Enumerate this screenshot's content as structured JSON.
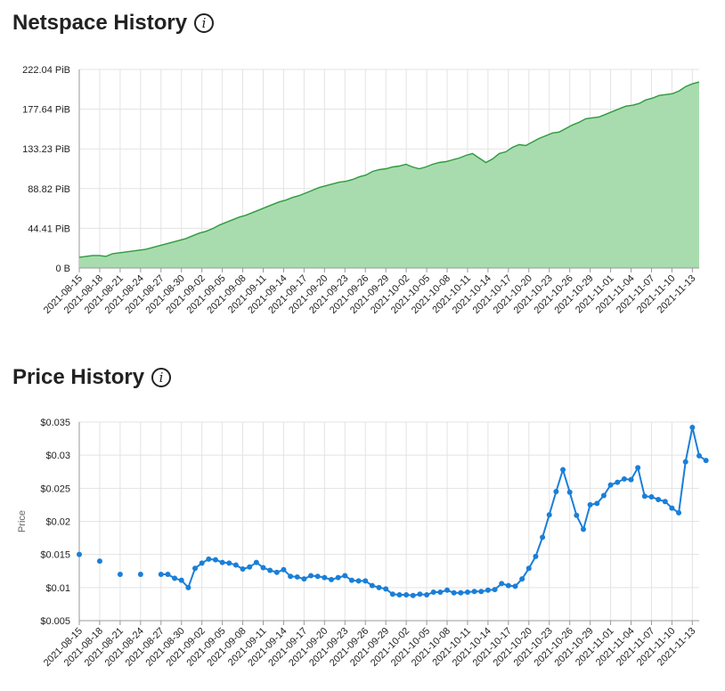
{
  "netspace": {
    "title": "Netspace History",
    "info_icon": "info-icon",
    "chart_data": {
      "type": "area",
      "color": "#2e9a3e",
      "fill": "#a8dcae",
      "y_ticks": [
        "0 B",
        "44.41 PiB",
        "88.82 PiB",
        "133.23 PiB",
        "177.64 PiB",
        "222.04 PiB"
      ],
      "ylim": [
        0,
        222.04
      ],
      "y_unit": "PiB",
      "x_tick_labels": [
        "2021-08-15",
        "2021-08-18",
        "2021-08-21",
        "2021-08-24",
        "2021-08-27",
        "2021-08-30",
        "2021-09-02",
        "2021-09-05",
        "2021-09-08",
        "2021-09-11",
        "2021-09-14",
        "2021-09-17",
        "2021-09-20",
        "2021-09-23",
        "2021-09-26",
        "2021-09-29",
        "2021-10-02",
        "2021-10-05",
        "2021-10-08",
        "2021-10-11",
        "2021-10-14",
        "2021-10-17",
        "2021-10-20",
        "2021-10-23",
        "2021-10-26",
        "2021-10-29",
        "2021-11-01",
        "2021-11-04",
        "2021-11-07",
        "2021-11-10",
        "2021-11-13"
      ],
      "x_start": "2021-08-15",
      "x_end": "2021-11-14",
      "values": [
        12,
        13,
        14,
        14,
        13,
        16,
        17,
        18,
        19,
        20,
        21,
        23,
        25,
        27,
        29,
        31,
        33,
        36,
        39,
        41,
        44,
        48,
        51,
        54,
        57,
        59,
        62,
        65,
        68,
        71,
        74,
        76,
        79,
        81,
        84,
        87,
        90,
        92,
        94,
        96,
        97,
        99,
        102,
        104,
        108,
        110,
        111,
        113,
        114,
        116,
        113,
        111,
        113,
        116,
        118,
        119,
        121,
        123,
        126,
        128,
        123,
        118,
        122,
        128,
        130,
        135,
        138,
        137,
        141,
        145,
        148,
        151,
        152,
        156,
        160,
        163,
        167,
        168,
        169,
        172,
        175,
        178,
        181,
        182,
        184,
        188,
        190,
        193,
        194,
        195,
        198,
        203,
        206,
        208
      ]
    }
  },
  "price": {
    "title": "Price History",
    "info_icon": "info-icon",
    "chart_data": {
      "type": "line",
      "color": "#1a7fd8",
      "ylabel": "Price",
      "y_ticks": [
        "$0.005",
        "$0.01",
        "$0.015",
        "$0.02",
        "$0.025",
        "$0.03",
        "$0.035"
      ],
      "ylim": [
        0.005,
        0.035
      ],
      "x_tick_labels": [
        "2021-08-15",
        "2021-08-18",
        "2021-08-21",
        "2021-08-24",
        "2021-08-27",
        "2021-08-30",
        "2021-09-02",
        "2021-09-05",
        "2021-09-08",
        "2021-09-11",
        "2021-09-14",
        "2021-09-17",
        "2021-09-20",
        "2021-09-23",
        "2021-09-26",
        "2021-09-29",
        "2021-10-02",
        "2021-10-05",
        "2021-10-08",
        "2021-10-11",
        "2021-10-14",
        "2021-10-17",
        "2021-10-20",
        "2021-10-23",
        "2021-10-26",
        "2021-10-29",
        "2021-11-01",
        "2021-11-04",
        "2021-11-07",
        "2021-11-10",
        "2021-11-13"
      ],
      "x_start": "2021-08-15",
      "x_end": "2021-11-14",
      "points": [
        [
          "2021-08-15",
          0.015
        ],
        [
          "2021-08-18",
          0.014
        ],
        [
          "2021-08-21",
          0.012
        ],
        [
          "2021-08-24",
          0.012
        ],
        [
          "2021-08-27",
          0.012
        ],
        [
          "2021-08-28",
          0.012
        ],
        [
          "2021-08-29",
          0.0114
        ],
        [
          "2021-08-30",
          0.0111
        ],
        [
          "2021-08-31",
          0.01
        ],
        [
          "2021-09-01",
          0.0129
        ],
        [
          "2021-09-02",
          0.0137
        ],
        [
          "2021-09-03",
          0.0143
        ],
        [
          "2021-09-04",
          0.0142
        ],
        [
          "2021-09-05",
          0.0138
        ],
        [
          "2021-09-06",
          0.0137
        ],
        [
          "2021-09-07",
          0.0134
        ],
        [
          "2021-09-08",
          0.0128
        ],
        [
          "2021-09-09",
          0.0131
        ],
        [
          "2021-09-10",
          0.0138
        ],
        [
          "2021-09-11",
          0.013
        ],
        [
          "2021-09-12",
          0.0126
        ],
        [
          "2021-09-13",
          0.0123
        ],
        [
          "2021-09-14",
          0.0127
        ],
        [
          "2021-09-15",
          0.0117
        ],
        [
          "2021-09-16",
          0.0116
        ],
        [
          "2021-09-17",
          0.0113
        ],
        [
          "2021-09-18",
          0.0118
        ],
        [
          "2021-09-19",
          0.0117
        ],
        [
          "2021-09-20",
          0.0115
        ],
        [
          "2021-09-21",
          0.0112
        ],
        [
          "2021-09-22",
          0.0115
        ],
        [
          "2021-09-23",
          0.0118
        ],
        [
          "2021-09-24",
          0.0111
        ],
        [
          "2021-09-25",
          0.011
        ],
        [
          "2021-09-26",
          0.011
        ],
        [
          "2021-09-27",
          0.0103
        ],
        [
          "2021-09-28",
          0.01
        ],
        [
          "2021-09-29",
          0.0098
        ],
        [
          "2021-09-30",
          0.009
        ],
        [
          "2021-10-01",
          0.0089
        ],
        [
          "2021-10-02",
          0.0089
        ],
        [
          "2021-10-03",
          0.0088
        ],
        [
          "2021-10-04",
          0.009
        ],
        [
          "2021-10-05",
          0.0089
        ],
        [
          "2021-10-06",
          0.0093
        ],
        [
          "2021-10-07",
          0.0093
        ],
        [
          "2021-10-08",
          0.0096
        ],
        [
          "2021-10-09",
          0.0092
        ],
        [
          "2021-10-10",
          0.0092
        ],
        [
          "2021-10-11",
          0.0093
        ],
        [
          "2021-10-12",
          0.0094
        ],
        [
          "2021-10-13",
          0.0094
        ],
        [
          "2021-10-14",
          0.0096
        ],
        [
          "2021-10-15",
          0.0097
        ],
        [
          "2021-10-16",
          0.0106
        ],
        [
          "2021-10-17",
          0.0103
        ],
        [
          "2021-10-18",
          0.0102
        ],
        [
          "2021-10-19",
          0.0113
        ],
        [
          "2021-10-20",
          0.0129
        ],
        [
          "2021-10-21",
          0.0147
        ],
        [
          "2021-10-22",
          0.0176
        ],
        [
          "2021-10-23",
          0.021
        ],
        [
          "2021-10-24",
          0.0245
        ],
        [
          "2021-10-25",
          0.0278
        ],
        [
          "2021-10-26",
          0.0244
        ],
        [
          "2021-10-27",
          0.0209
        ],
        [
          "2021-10-28",
          0.0188
        ],
        [
          "2021-10-29",
          0.0225
        ],
        [
          "2021-10-30",
          0.0227
        ],
        [
          "2021-10-31",
          0.0239
        ],
        [
          "2021-11-01",
          0.0255
        ],
        [
          "2021-11-02",
          0.0259
        ],
        [
          "2021-11-03",
          0.0264
        ],
        [
          "2021-11-04",
          0.0263
        ],
        [
          "2021-11-05",
          0.0281
        ],
        [
          "2021-11-06",
          0.0238
        ],
        [
          "2021-11-07",
          0.0237
        ],
        [
          "2021-11-08",
          0.0233
        ],
        [
          "2021-11-09",
          0.023
        ],
        [
          "2021-11-10",
          0.022
        ],
        [
          "2021-11-11",
          0.0213
        ],
        [
          "2021-11-12",
          0.029
        ],
        [
          "2021-11-13",
          0.0342
        ],
        [
          "2021-11-14",
          0.0299
        ],
        [
          "2021-11-15",
          0.0292
        ]
      ]
    }
  }
}
